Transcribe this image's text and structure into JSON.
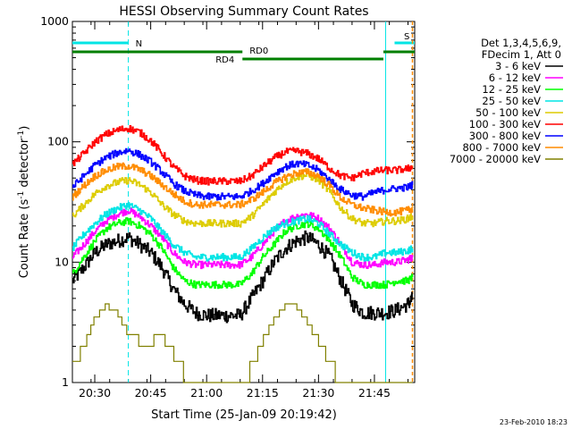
{
  "chart_data": {
    "type": "line",
    "title": "HESSI Observing Summary Count Rates",
    "xlabel": "Start Time (25-Jan-09 20:19:42)",
    "ylabel_main": "Count Rate (s",
    "ylabel_sup1": "-1",
    "ylabel_mid": " detector",
    "ylabel_sup2": "-1",
    "ylabel_end": ")",
    "y_scale": "log",
    "ylim": [
      1,
      1000
    ],
    "xlim": [
      20.4,
      21.93
    ],
    "x_ticks": [
      {
        "value": 20.5,
        "label": "20:30"
      },
      {
        "value": 20.75,
        "label": "20:45"
      },
      {
        "value": 21.0,
        "label": "21:00"
      },
      {
        "value": 21.25,
        "label": "21:15"
      },
      {
        "value": 21.5,
        "label": "21:30"
      },
      {
        "value": 21.75,
        "label": "21:45"
      }
    ],
    "y_ticks": [
      {
        "value": 1,
        "label": "1"
      },
      {
        "value": 10,
        "label": "10"
      },
      {
        "value": 100,
        "label": "100"
      },
      {
        "value": 1000,
        "label": "1000"
      }
    ],
    "legend_header": [
      "Det 1,3,4,5,6,9,",
      "FDecim 1, Att 0"
    ],
    "legend_position": "right",
    "timestamp": "23-Feb-2010 18:23",
    "markers": {
      "N": {
        "label": "N",
        "x_start": 20.4,
        "x_end": 20.65,
        "x_line": 20.65,
        "color": "#00e5e5"
      },
      "S": {
        "label": "S",
        "x_start": 21.84,
        "x_end": 21.93,
        "x_line": 21.92,
        "color": "#ff8c00"
      },
      "saa_line": {
        "x": 21.8,
        "color": "#00e5e5"
      },
      "RD0": {
        "label": "RD0",
        "segments": [
          [
            20.4,
            21.16
          ],
          [
            21.79,
            21.93
          ]
        ],
        "color": "#007f00"
      },
      "RD4": {
        "label": "RD4",
        "segments": [
          [
            21.16,
            21.79
          ]
        ],
        "color": "#007f00"
      }
    },
    "x": [
      20.4,
      20.45,
      20.5,
      20.55,
      20.6,
      20.65,
      20.7,
      20.75,
      20.8,
      20.85,
      20.9,
      20.95,
      21.0,
      21.05,
      21.1,
      21.15,
      21.2,
      21.25,
      21.3,
      21.35,
      21.4,
      21.45,
      21.5,
      21.55,
      21.6,
      21.65,
      21.7,
      21.75,
      21.8,
      21.85,
      21.9,
      21.92
    ],
    "series": [
      {
        "name": "3 - 6 keV",
        "color": "#000000",
        "values": [
          7,
          9,
          12,
          14,
          15,
          16,
          14,
          12,
          9,
          6,
          4.5,
          3.8,
          3.6,
          3.6,
          3.6,
          3.6,
          5,
          7,
          10,
          13,
          15,
          16,
          14,
          11,
          7,
          4.5,
          3.8,
          3.8,
          3.8,
          4,
          4.5,
          5
        ]
      },
      {
        "name": "6 - 12 keV",
        "color": "#ff00ff",
        "values": [
          11,
          14,
          18,
          22,
          25,
          27,
          24,
          20,
          16,
          12,
          10,
          9.5,
          9.5,
          9.5,
          9.5,
          9.5,
          11,
          14,
          18,
          22,
          24,
          25,
          23,
          19,
          14,
          10,
          9.5,
          9.5,
          10,
          10,
          10.5,
          11
        ]
      },
      {
        "name": "12 - 25 keV",
        "color": "#00ff00",
        "values": [
          8,
          11,
          15,
          19,
          21,
          22,
          20,
          17,
          13,
          9,
          7,
          6.5,
          6.5,
          6.5,
          6.5,
          6.5,
          8,
          11,
          14,
          18,
          20,
          21,
          19,
          15,
          11,
          7.5,
          6.5,
          6.5,
          6.5,
          7,
          7,
          7.5
        ]
      },
      {
        "name": "25 - 50 keV",
        "color": "#00e5e5",
        "values": [
          13,
          17,
          21,
          25,
          28,
          30,
          27,
          23,
          18,
          14,
          12,
          11,
          11,
          11,
          11,
          11,
          13,
          16,
          19,
          21,
          22,
          23,
          21,
          17,
          14,
          12,
          11,
          11,
          12,
          12,
          12.5,
          13
        ]
      },
      {
        "name": "50 - 100 keV",
        "color": "#ddcc00",
        "values": [
          24,
          30,
          37,
          43,
          46,
          48,
          44,
          38,
          30,
          25,
          22,
          21,
          21,
          21,
          21,
          21,
          24,
          30,
          38,
          46,
          51,
          53,
          48,
          38,
          28,
          23,
          21,
          21,
          22,
          22,
          23,
          24
        ]
      },
      {
        "name": "100 - 300 keV",
        "color": "#ff0000",
        "values": [
          65,
          80,
          100,
          115,
          125,
          130,
          120,
          102,
          80,
          62,
          52,
          48,
          47,
          47,
          47,
          47,
          52,
          62,
          73,
          82,
          84,
          80,
          72,
          60,
          52,
          50,
          55,
          57,
          58,
          58,
          60,
          62
        ]
      },
      {
        "name": "300 - 800 keV",
        "color": "#0000ff",
        "values": [
          42,
          52,
          64,
          74,
          81,
          85,
          78,
          68,
          56,
          45,
          39,
          36,
          35,
          35,
          35,
          35,
          39,
          45,
          54,
          62,
          66,
          64,
          58,
          48,
          40,
          36,
          35,
          38,
          40,
          41,
          42,
          44
        ]
      },
      {
        "name": "800 - 7000 keV",
        "color": "#ff8c00",
        "values": [
          35,
          43,
          52,
          58,
          62,
          63,
          59,
          52,
          44,
          37,
          32,
          30,
          30,
          30,
          30,
          30,
          33,
          38,
          45,
          51,
          55,
          56,
          52,
          43,
          34,
          30,
          28,
          27,
          26,
          26,
          27,
          28
        ]
      },
      {
        "name": "7000 - 20000 keV",
        "color": "#808000",
        "values": [
          1.3,
          2,
          3.4,
          4.4,
          3.8,
          2.6,
          2.2,
          2.2,
          2.4,
          1.8,
          1.2,
          1,
          1,
          1,
          1,
          1,
          1.3,
          2.2,
          3.3,
          4.3,
          4.3,
          3.2,
          2.2,
          1.5,
          1,
          1,
          1,
          1,
          1,
          1,
          1,
          1
        ]
      }
    ]
  }
}
